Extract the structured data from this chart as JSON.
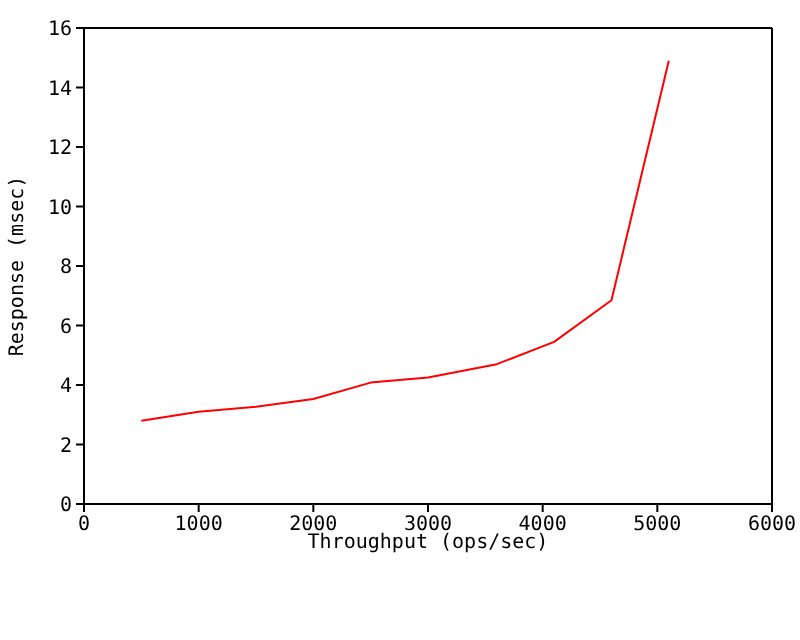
{
  "chart_data": {
    "type": "line",
    "xlabel": "Throughput (ops/sec)",
    "ylabel": "Response (msec)",
    "x": [
      500,
      1000,
      1500,
      2000,
      2500,
      3000,
      3600,
      4100,
      4600,
      5100
    ],
    "series": [
      {
        "color": "#ff0000",
        "values": [
          2.8,
          3.1,
          3.27,
          3.53,
          4.08,
          4.25,
          4.7,
          5.45,
          6.85,
          14.9
        ]
      }
    ],
    "xlim": [
      0,
      6000
    ],
    "xticks": [
      0,
      1000,
      2000,
      3000,
      4000,
      5000,
      6000
    ],
    "ylim": [
      0,
      16
    ],
    "yticks": [
      0,
      2,
      4,
      6,
      8,
      10,
      12,
      14,
      16
    ],
    "grid": false,
    "legend": false,
    "marker": "none",
    "line_style": "solid"
  }
}
